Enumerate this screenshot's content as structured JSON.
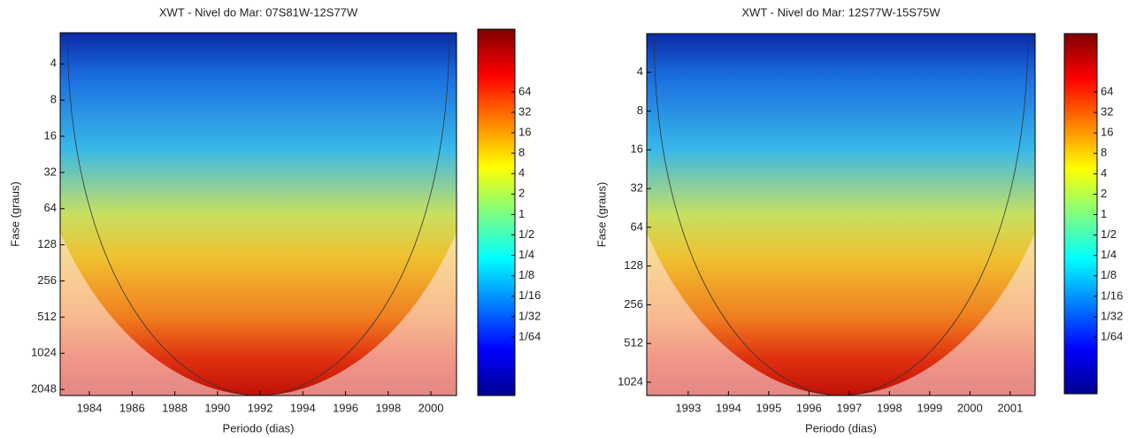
{
  "chart_data": [
    {
      "type": "wavelet",
      "title": "XWT - Nivel do Mar: 07S81W-12S77W",
      "x_label": "Periodo (dias)",
      "y_label": "Fase (graus)",
      "xlim": [
        1982.63,
        2001.2
      ],
      "xticks": [
        1984,
        1986,
        1988,
        1990,
        1992,
        1994,
        1996,
        1998,
        2000
      ],
      "ylim": [
        2.2,
        2300
      ],
      "y_scale": "log",
      "yticks": [
        4,
        8,
        16,
        32,
        64,
        128,
        256,
        512,
        1024,
        2048
      ],
      "clim": [
        0.00215,
        537
      ],
      "cticks": [
        64,
        32,
        16,
        8,
        4,
        2,
        1,
        {
          "value": 0.5,
          "label": "1/2"
        },
        {
          "value": 0.25,
          "label": "1/4"
        },
        {
          "value": 0.125,
          "label": "1/8"
        },
        {
          "value": 0.0625,
          "label": "1/16"
        },
        {
          "value": 0.03125,
          "label": "1/32"
        },
        {
          "value": 0.015625,
          "label": "1/64"
        }
      ]
    },
    {
      "type": "wavelet",
      "title": "XWT - Nivel do Mar: 12S77W-15S75W",
      "x_label": "Periodo (dias)",
      "y_label": "Fase (graus)",
      "xlim": [
        1991.97,
        2001.62
      ],
      "xticks": [
        1993,
        1994,
        1995,
        1996,
        1997,
        1998,
        1999,
        2000,
        2001
      ],
      "ylim": [
        2,
        1300
      ],
      "y_scale": "log",
      "yticks": [
        4,
        8,
        16,
        32,
        64,
        128,
        256,
        512,
        1024
      ],
      "clim": [
        0.00229,
        465
      ],
      "cticks": [
        64,
        32,
        16,
        8,
        4,
        2,
        1,
        {
          "value": 0.5,
          "label": "1/2"
        },
        {
          "value": 0.25,
          "label": "1/4"
        },
        {
          "value": 0.125,
          "label": "1/8"
        },
        {
          "value": 0.0625,
          "label": "1/16"
        },
        {
          "value": 0.03125,
          "label": "1/32"
        },
        {
          "value": 0.015625,
          "label": "1/64"
        }
      ]
    }
  ]
}
